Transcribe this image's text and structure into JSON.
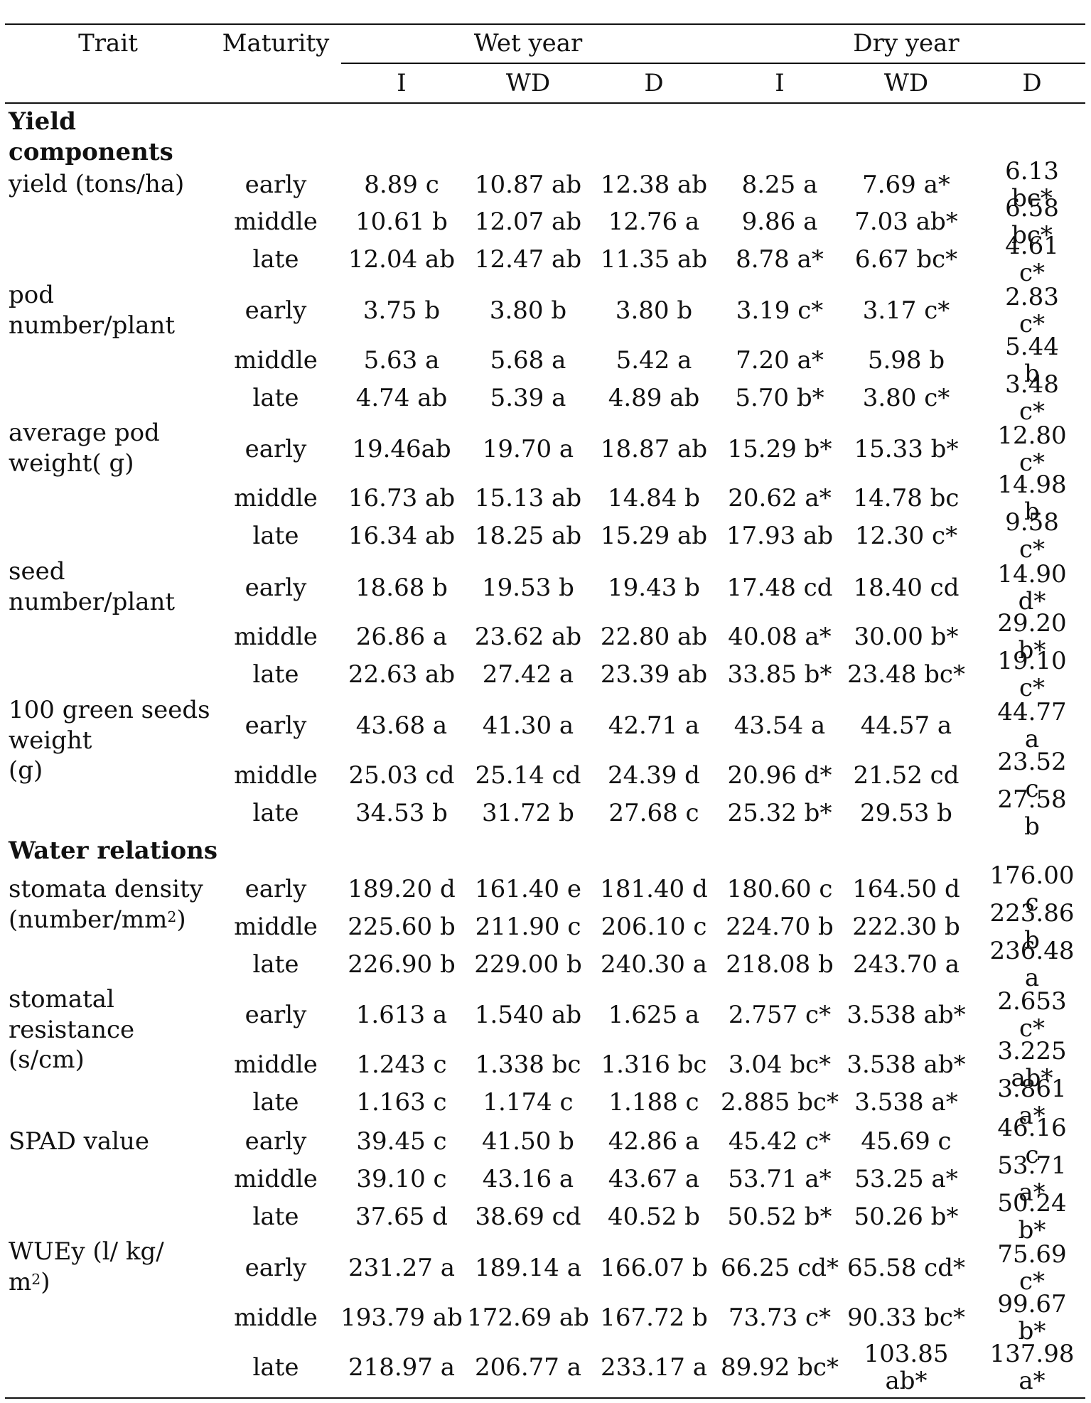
{
  "headers": {
    "trait": "Trait",
    "maturity": "Maturity",
    "wet_year": "Wet year",
    "dry_year": "Dry year",
    "treatments": [
      "I",
      "WD",
      "D",
      "I",
      "WD",
      "D"
    ]
  },
  "sections": [
    {
      "title": "Yield\ncomponents",
      "traits": [
        {
          "name": "yield (tons/ha)",
          "rows": [
            {
              "maturity": "early",
              "values": [
                "8.89 c",
                "10.87 ab",
                "12.38 ab",
                "8.25 a",
                "7.69 a*",
                "6.13 bc*"
              ]
            },
            {
              "maturity": "middle",
              "values": [
                "10.61 b",
                "12.07 ab",
                "12.76 a",
                "9.86 a",
                "7.03 ab*",
                "6.58 bc*"
              ]
            },
            {
              "maturity": "late",
              "values": [
                "12.04 ab",
                "12.47 ab",
                "11.35 ab",
                "8.78 a*",
                "6.67 bc*",
                "4.61 c*"
              ]
            }
          ]
        },
        {
          "name": "pod\nnumber/plant",
          "rows": [
            {
              "maturity": "early",
              "values": [
                "3.75 b",
                "3.80 b",
                "3.80 b",
                "3.19 c*",
                "3.17 c*",
                "2.83 c*"
              ]
            },
            {
              "maturity": "middle",
              "values": [
                "5.63 a",
                "5.68 a",
                "5.42 a",
                "7.20 a*",
                "5.98 b",
                "5.44 b"
              ]
            },
            {
              "maturity": "late",
              "values": [
                "4.74 ab",
                "5.39 a",
                "4.89 ab",
                "5.70 b*",
                "3.80 c*",
                "3.48 c*"
              ]
            }
          ]
        },
        {
          "name": "average pod\nweight( g)",
          "rows": [
            {
              "maturity": "early",
              "values": [
                "19.46ab",
                "19.70 a",
                "18.87 ab",
                "15.29 b*",
                "15.33 b*",
                "12.80 c*"
              ]
            },
            {
              "maturity": "middle",
              "values": [
                "16.73 ab",
                "15.13 ab",
                "14.84 b",
                "20.62 a*",
                "14.78 bc",
                "14.98 b"
              ]
            },
            {
              "maturity": "late",
              "values": [
                "16.34 ab",
                "18.25 ab",
                "15.29 ab",
                "17.93 ab",
                "12.30 c*",
                "9.58 c*"
              ]
            }
          ]
        },
        {
          "name": "seed\nnumber/plant",
          "rows": [
            {
              "maturity": "early",
              "values": [
                "18.68 b",
                "19.53 b",
                "19.43 b",
                "17.48 cd",
                "18.40 cd",
                "14.90 d*"
              ]
            },
            {
              "maturity": "middle",
              "values": [
                "26.86 a",
                "23.62 ab",
                "22.80 ab",
                "40.08 a*",
                "30.00 b*",
                "29.20 b*"
              ]
            },
            {
              "maturity": "late",
              "values": [
                "22.63 ab",
                "27.42 a",
                "23.39 ab",
                "33.85 b*",
                "23.48 bc*",
                "19.10 c*"
              ]
            }
          ]
        },
        {
          "name": "100 green seeds\nweight\n(g)",
          "rows": [
            {
              "maturity": "early",
              "values": [
                "43.68 a",
                "41.30 a",
                "42.71 a",
                "43.54 a",
                "44.57 a",
                "44.77 a"
              ]
            },
            {
              "maturity": "middle",
              "values": [
                "25.03 cd",
                "25.14 cd",
                "24.39 d",
                "20.96 d*",
                "21.52 cd",
                "23.52 c"
              ]
            },
            {
              "maturity": "late",
              "values": [
                "34.53 b",
                "31.72 b",
                "27.68 c",
                "25.32 b*",
                "29.53 b",
                "27.58 b"
              ]
            }
          ]
        }
      ]
    },
    {
      "title": "Water relations",
      "traits": [
        {
          "name": "stomata density\n(number/mm",
          "name_sup": "2",
          "name_tail": ")",
          "rows": [
            {
              "maturity": "early",
              "values": [
                "189.20 d",
                "161.40 e",
                "181.40 d",
                "180.60 c",
                "164.50 d",
                "176.00 c"
              ]
            },
            {
              "maturity": "middle",
              "values": [
                "225.60 b",
                "211.90 c",
                "206.10 c",
                "224.70 b",
                "222.30 b",
                "223.86 b"
              ]
            },
            {
              "maturity": "late",
              "values": [
                "226.90 b",
                "229.00 b",
                "240.30 a",
                "218.08 b",
                "243.70 a",
                "236.48 a"
              ]
            }
          ]
        },
        {
          "name": "stomatal\nresistance\n(s/cm)",
          "rows": [
            {
              "maturity": "early",
              "values": [
                "1.613 a",
                "1.540 ab",
                "1.625 a",
                "2.757 c*",
                "3.538 ab*",
                "2.653 c*"
              ]
            },
            {
              "maturity": "middle",
              "values": [
                "1.243 c",
                "1.338 bc",
                "1.316 bc",
                "3.04 bc*",
                "3.538 ab*",
                "3.225 ab*"
              ]
            },
            {
              "maturity": "late",
              "values": [
                "1.163 c",
                "1.174 c",
                "1.188 c",
                "2.885 bc*",
                "3.538 a*",
                "3.861 a*"
              ]
            }
          ]
        },
        {
          "name": "SPAD value",
          "rows": [
            {
              "maturity": "early",
              "values": [
                "39.45 c",
                "41.50 b",
                "42.86 a",
                "45.42 c*",
                "45.69 c",
                "46.16 c"
              ]
            },
            {
              "maturity": "middle",
              "values": [
                "39.10 c",
                "43.16 a",
                "43.67 a",
                "53.71 a*",
                "53.25 a*",
                "53.71 a*"
              ]
            },
            {
              "maturity": "late",
              "values": [
                "37.65 d",
                "38.69 cd",
                "40.52 b",
                "50.52 b*",
                "50.26 b*",
                "50.24 b*"
              ]
            }
          ]
        },
        {
          "name": "WUEy (l/ kg/\nm",
          "name_sup": "2",
          "name_tail": ")",
          "rows": [
            {
              "maturity": "early",
              "values": [
                "231.27 a",
                "189.14 a",
                "166.07 b",
                "66.25 cd*",
                "65.58 cd*",
                "75.69 c*"
              ]
            },
            {
              "maturity": "middle",
              "values": [
                "193.79 ab",
                "172.69 ab",
                "167.72 b",
                "73.73 c*",
                "90.33 bc*",
                "99.67 b*"
              ]
            },
            {
              "maturity": "late",
              "values": [
                "218.97 a",
                "206.77 a",
                "233.17 a",
                "89.92 bc*",
                "103.85\nab*",
                "137.98 a*"
              ]
            }
          ]
        }
      ]
    }
  ]
}
